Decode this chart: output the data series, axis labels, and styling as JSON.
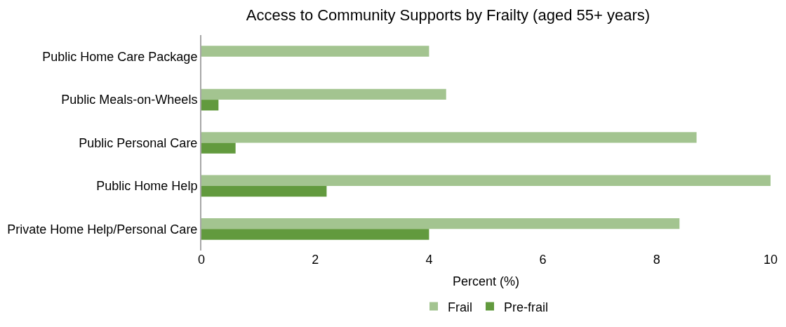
{
  "chart_data": {
    "type": "bar",
    "orientation": "horizontal",
    "title": "Access to Community Supports by Frailty (aged 55+ years)",
    "xlabel": "Percent (%)",
    "categories": [
      "Public Home Care Package",
      "Public Meals-on-Wheels",
      "Public Personal Care",
      "Public Home Help",
      "Private Home Help/Personal Care"
    ],
    "series": [
      {
        "name": "Frail",
        "color": "#a3c490",
        "values": [
          4.0,
          4.3,
          8.7,
          10.0,
          8.4
        ]
      },
      {
        "name": "Pre-frail",
        "color": "#629a3e",
        "values": [
          null,
          0.3,
          0.6,
          2.2,
          4.0
        ]
      }
    ],
    "xlim": [
      0,
      10
    ],
    "xticks": [
      0,
      2,
      4,
      6,
      8,
      10
    ],
    "legend": "bottom"
  }
}
